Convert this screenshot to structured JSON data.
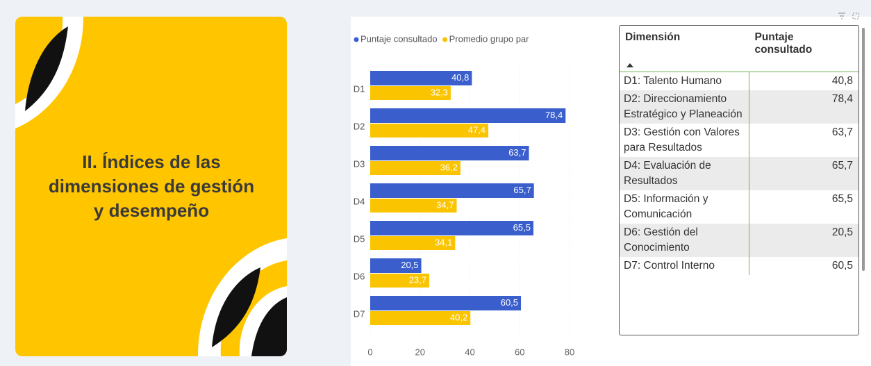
{
  "card": {
    "title_lines": [
      "II. Índices de las",
      "dimensiones de gestión",
      "y desempeño"
    ]
  },
  "chart_data": {
    "type": "barh",
    "categories": [
      "D1",
      "D2",
      "D3",
      "D4",
      "D5",
      "D6",
      "D7"
    ],
    "series": [
      {
        "name": "Puntaje consultado",
        "color": "#3a5fcd",
        "values": [
          40.8,
          78.4,
          63.7,
          65.7,
          65.5,
          20.5,
          60.5
        ],
        "value_labels": [
          "40,8",
          "78,4",
          "63,7",
          "65,7",
          "65,5",
          "20,5",
          "60,5"
        ]
      },
      {
        "name": "Promedio grupo par",
        "color": "#fbc400",
        "values": [
          32.3,
          47.4,
          36.2,
          34.7,
          34.1,
          23.7,
          40.2
        ],
        "value_labels": [
          "32,3",
          "47,4",
          "36,2",
          "34,7",
          "34,1",
          "23,7",
          "40,2"
        ]
      }
    ],
    "xlim": [
      0,
      80
    ],
    "xticks": [
      0,
      20,
      40,
      60,
      80
    ],
    "grid": true
  },
  "table": {
    "header": [
      "Dimensión",
      "Puntaje consultado"
    ],
    "rows": [
      [
        "D1: Talento Humano",
        "40,8"
      ],
      [
        "D2: Direccionamiento Estratégico y Planeación",
        "78,4"
      ],
      [
        "D3: Gestión con Valores para Resultados",
        "63,7"
      ],
      [
        "D4: Evaluación de Resultados",
        "65,7"
      ],
      [
        "D5: Información y Comunicación",
        "65,5"
      ],
      [
        "D6: Gestión del Conocimiento",
        "20,5"
      ],
      [
        "D7: Control Interno",
        "60,5"
      ]
    ]
  }
}
